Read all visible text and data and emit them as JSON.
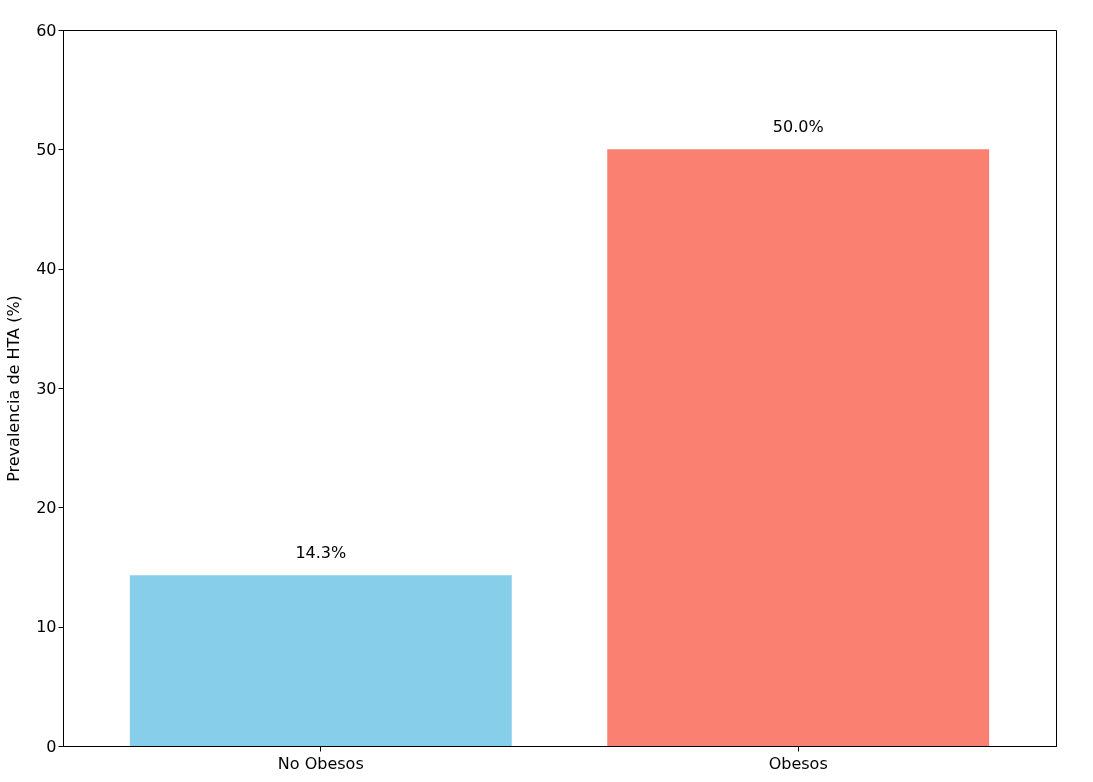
{
  "chart_data": {
    "type": "bar",
    "ylabel": "Prevalencia de HTA (%)",
    "categories": [
      "No Obesos",
      "Obesos"
    ],
    "values": [
      14.3,
      50.0
    ],
    "colors": [
      "#87ceeb",
      "#fa8072"
    ],
    "value_labels": [
      "14.3%",
      "50.0%"
    ],
    "ylim": [
      0,
      60
    ],
    "yticks": [
      0,
      10,
      20,
      30,
      40,
      50,
      60
    ],
    "grid": false,
    "legend": false
  }
}
